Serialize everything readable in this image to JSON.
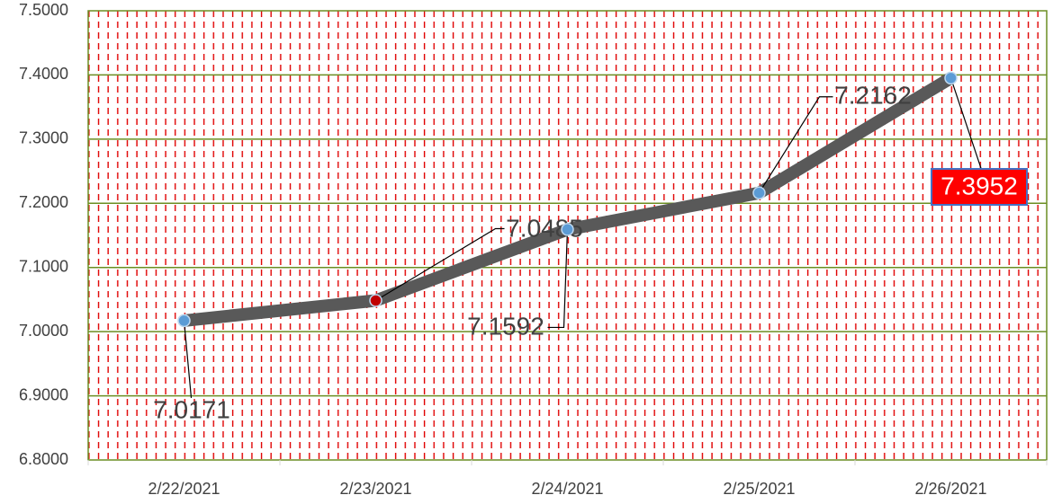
{
  "chart_data": {
    "type": "line",
    "categories": [
      "2/22/2021",
      "2/23/2021",
      "2/24/2021",
      "2/25/2021",
      "2/26/2021"
    ],
    "series": [
      {
        "color": "#595959",
        "marker_colors": [
          "#5b9bd5",
          "#c00000",
          "#5b9bd5",
          "#5b9bd5",
          "#5b9bd5"
        ],
        "values": [
          7.0171,
          7.0485,
          7.1592,
          7.2162,
          7.3952
        ]
      }
    ],
    "ylim": [
      6.8,
      7.5
    ],
    "yticks": [
      {
        "value": 6.8,
        "label": "6.8000"
      },
      {
        "value": 6.9,
        "label": "6.9000"
      },
      {
        "value": 7.0,
        "label": "7.0000"
      },
      {
        "value": 7.1,
        "label": "7.1000"
      },
      {
        "value": 7.2,
        "label": "7.2000"
      },
      {
        "value": 7.3,
        "label": "7.3000"
      },
      {
        "value": 7.4,
        "label": "7.4000"
      },
      {
        "value": 7.5,
        "label": "7.5000"
      }
    ],
    "grid": true
  }
}
